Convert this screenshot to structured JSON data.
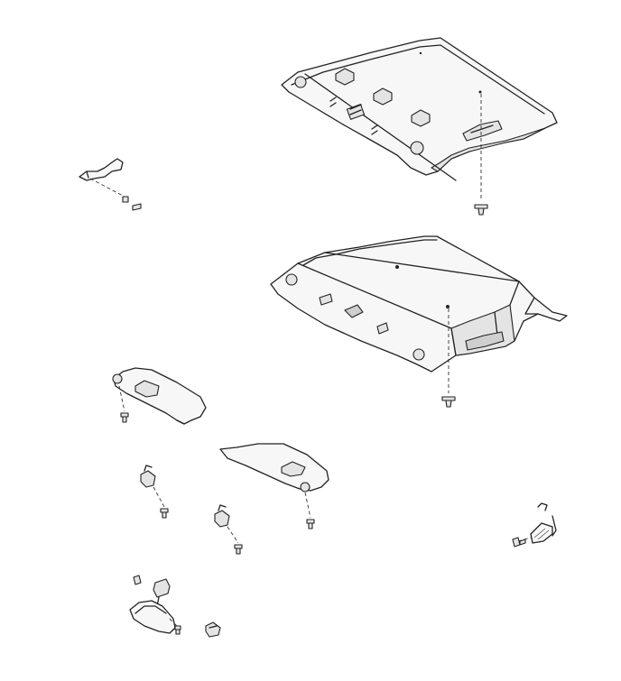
{
  "diagram": {
    "type": "exploded-parts-diagram",
    "colors": {
      "line": "#222222",
      "panel": "#f7f7f7",
      "shade": "#e4e4e4",
      "background": "#ffffff"
    },
    "parts": [
      "headliner-upper",
      "headliner-lower",
      "headliner-screw",
      "assist-grip-bracket",
      "sun-visor-left",
      "sun-visor-right",
      "visor-mount",
      "visor-clip",
      "rear-view-mirror",
      "dome-lamp"
    ]
  }
}
